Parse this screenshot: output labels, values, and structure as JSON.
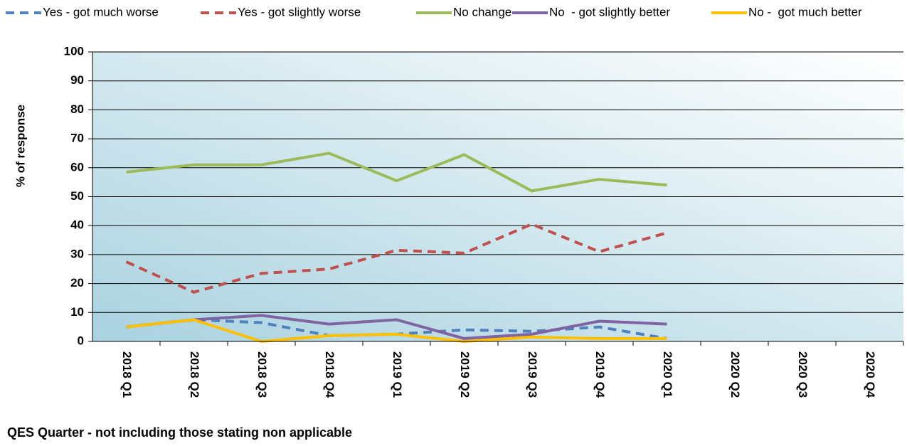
{
  "chart_data": {
    "type": "line",
    "x_label": "QES Quarter - not including those stating non applicable",
    "y_label": "% of response",
    "categories": [
      "2018 Q1",
      "2018 Q2",
      "2018 Q3",
      "2018 Q4",
      "2019 Q1",
      "2019 Q2",
      "2019 Q3",
      "2019 Q4",
      "2020 Q1",
      "2020 Q2",
      "2020 Q3",
      "2020 Q4"
    ],
    "series": [
      {
        "name": "Yes - got much worse",
        "color": "#4f81bd",
        "dashed": true,
        "values": [
          5,
          7.5,
          6.5,
          2,
          2.5,
          4,
          3.5,
          5,
          1,
          null,
          null,
          null
        ]
      },
      {
        "name": "Yes - got slightly worse",
        "color": "#c0504d",
        "dashed": true,
        "values": [
          27.5,
          17,
          23.5,
          25,
          31.5,
          30.5,
          40.5,
          31,
          37.5,
          null,
          null,
          null
        ]
      },
      {
        "name": "No change",
        "color": "#9bbb59",
        "dashed": false,
        "values": [
          58.5,
          61,
          61,
          65,
          55.5,
          64.5,
          52,
          56,
          54,
          null,
          null,
          null
        ]
      },
      {
        "name": "No  - got slightly better",
        "color": "#8064a2",
        "dashed": false,
        "values": [
          5,
          7.5,
          9,
          6,
          7.5,
          1,
          2.5,
          7,
          6,
          null,
          null,
          null
        ]
      },
      {
        "name": "No -  got much better",
        "color": "#ffc000",
        "dashed": false,
        "values": [
          5,
          7.5,
          0,
          2,
          2.5,
          0,
          1.5,
          1,
          1,
          null,
          null,
          null
        ]
      }
    ],
    "ylim": [
      0,
      100
    ],
    "yticks": [
      0,
      10,
      20,
      30,
      40,
      50,
      60,
      70,
      80,
      90,
      100
    ],
    "grid": true
  }
}
